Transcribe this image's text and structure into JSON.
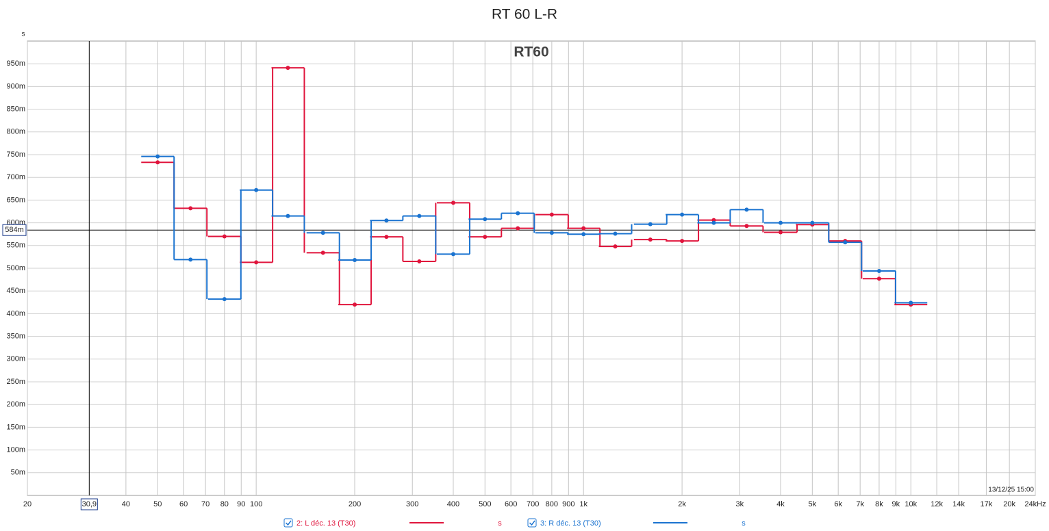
{
  "chart_data": {
    "type": "step",
    "title": "RT 60 L-R",
    "plot_label": "RT60",
    "y_unit": "s",
    "timestamp": "13/12/25 15:00",
    "x_scale": "log",
    "xlim": [
      20,
      24000
    ],
    "xticks": [
      20,
      {
        "value": 40,
        "label": "40"
      },
      50,
      60,
      70,
      80,
      90,
      100,
      200,
      300,
      400,
      500,
      600,
      700,
      800,
      900,
      {
        "value": 1000,
        "label": "1k"
      },
      {
        "value": 2000,
        "label": "2k"
      },
      {
        "value": 3000,
        "label": "3k"
      },
      {
        "value": 4000,
        "label": "4k"
      },
      {
        "value": 5000,
        "label": "5k"
      },
      {
        "value": 6000,
        "label": "6k"
      },
      {
        "value": 7000,
        "label": "7k"
      },
      {
        "value": 8000,
        "label": "8k"
      },
      {
        "value": 9000,
        "label": "9k"
      },
      {
        "value": 10000,
        "label": "10k"
      },
      {
        "value": 12000,
        "label": "12k"
      },
      {
        "value": 14000,
        "label": "14k"
      },
      {
        "value": 17000,
        "label": "17k"
      },
      {
        "value": 20000,
        "label": "20k"
      },
      {
        "value": 24000,
        "label": "24kHz"
      }
    ],
    "ylim": [
      0,
      1.0
    ],
    "yticks": [
      {
        "value": 0.05,
        "label": "50m"
      },
      {
        "value": 0.1,
        "label": "100m"
      },
      {
        "value": 0.15,
        "label": "150m"
      },
      {
        "value": 0.2,
        "label": "200m"
      },
      {
        "value": 0.25,
        "label": "250m"
      },
      {
        "value": 0.3,
        "label": "300m"
      },
      {
        "value": 0.35,
        "label": "350m"
      },
      {
        "value": 0.4,
        "label": "400m"
      },
      {
        "value": 0.45,
        "label": "450m"
      },
      {
        "value": 0.5,
        "label": "500m"
      },
      {
        "value": 0.55,
        "label": "550m"
      },
      {
        "value": 0.6,
        "label": "600m"
      },
      {
        "value": 0.65,
        "label": "650m"
      },
      {
        "value": 0.7,
        "label": "700m"
      },
      {
        "value": 0.75,
        "label": "750m"
      },
      {
        "value": 0.8,
        "label": "800m"
      },
      {
        "value": 0.85,
        "label": "850m"
      },
      {
        "value": 0.9,
        "label": "900m"
      },
      {
        "value": 0.95,
        "label": "950m"
      }
    ],
    "grid": true,
    "cursor": {
      "x": 30.9,
      "x_label": "30,9",
      "y": 0.584,
      "y_label": "584m"
    },
    "x": [
      50,
      63,
      80,
      100,
      125,
      160,
      200,
      250,
      315,
      400,
      500,
      630,
      800,
      1000,
      1250,
      1600,
      2000,
      2500,
      3150,
      4000,
      5000,
      6300,
      8000,
      10000
    ],
    "series": [
      {
        "name": "2: L déc. 13 (T30)",
        "unit": "s",
        "color": "#e0143c",
        "values": [
          0.733,
          0.632,
          0.57,
          0.513,
          0.941,
          0.534,
          0.42,
          0.569,
          0.515,
          0.644,
          0.569,
          0.588,
          0.618,
          0.588,
          0.548,
          0.563,
          0.56,
          0.606,
          0.593,
          0.579,
          0.596,
          0.56,
          0.477,
          0.42
        ]
      },
      {
        "name": "3: R déc. 13 (T30)",
        "unit": "s",
        "color": "#1a73d0",
        "values": [
          0.746,
          0.519,
          0.432,
          0.672,
          0.615,
          0.578,
          0.518,
          0.605,
          0.615,
          0.531,
          0.608,
          0.621,
          0.578,
          0.575,
          0.576,
          0.597,
          0.618,
          0.6,
          0.629,
          0.6,
          0.6,
          0.557,
          0.494,
          0.424
        ]
      }
    ]
  }
}
